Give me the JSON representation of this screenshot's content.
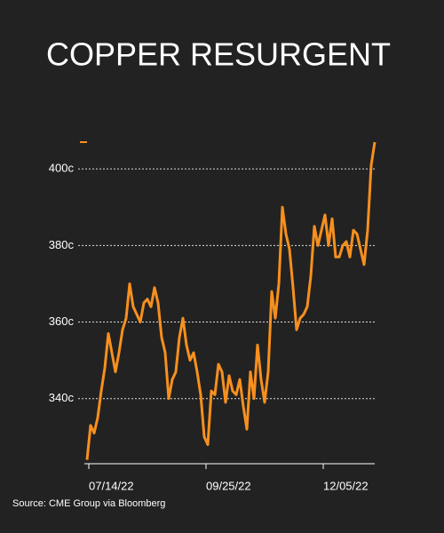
{
  "chart_data": {
    "type": "line",
    "title": "COPPER RESURGENT",
    "source": "Source: CME Group via Bloomberg",
    "categories": [
      "07/14/22",
      null,
      null,
      null,
      null,
      null,
      null,
      null,
      null,
      null,
      null,
      null,
      null,
      null,
      null,
      null,
      null,
      null,
      null,
      null,
      null,
      null,
      null,
      null,
      null,
      null,
      null,
      null,
      null,
      null,
      null,
      null,
      null,
      "09/25/22",
      null,
      null,
      null,
      null,
      null,
      null,
      null,
      null,
      null,
      null,
      null,
      null,
      null,
      null,
      null,
      null,
      null,
      null,
      null,
      null,
      null,
      null,
      null,
      null,
      null,
      null,
      null,
      null,
      null,
      null,
      null,
      null,
      "12/05/22",
      null,
      null,
      null,
      null,
      null,
      null,
      null,
      null,
      null,
      null,
      null,
      null,
      null,
      null,
      null
    ],
    "series": [
      {
        "color": "#f7901e",
        "values": [
          324,
          333,
          331,
          335,
          342,
          348,
          357,
          352,
          347,
          352,
          358,
          361,
          370,
          364,
          362,
          360,
          365,
          366,
          364,
          369,
          365,
          356,
          352,
          340,
          345,
          347,
          356,
          361,
          354,
          350,
          352,
          347,
          341,
          330,
          328,
          342,
          341,
          349,
          347,
          339,
          346,
          342,
          341,
          345,
          338,
          332,
          347,
          340,
          354,
          345,
          339,
          347,
          368,
          361,
          370,
          390,
          383,
          379,
          369,
          358,
          361,
          362,
          364,
          372,
          385,
          380,
          384,
          388,
          380,
          387,
          377,
          377,
          380,
          381,
          377,
          384,
          383,
          379,
          375,
          384,
          401,
          407
        ]
      }
    ],
    "ylim": [
      323,
      407
    ],
    "yticks": [
      {
        "value": 340,
        "label": "340c"
      },
      {
        "value": 360,
        "label": "360c"
      },
      {
        "value": 380,
        "label": "380c"
      },
      {
        "value": 400,
        "label": "400c"
      }
    ],
    "grid": true
  }
}
